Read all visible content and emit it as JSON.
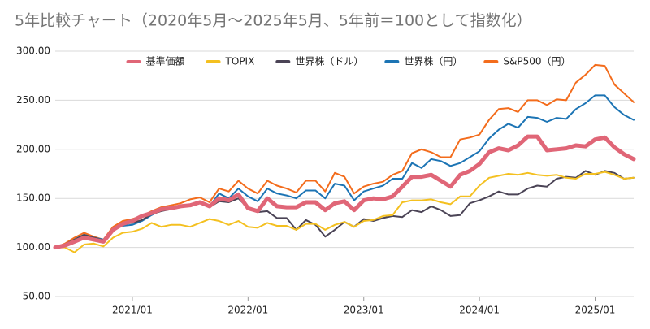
{
  "chart_data": {
    "type": "line",
    "title": "5年比較チャート（2020年5月〜2025年5月、5年前＝100として指数化）",
    "x": [
      "2020/05",
      "2020/06",
      "2020/07",
      "2020/08",
      "2020/09",
      "2020/10",
      "2020/11",
      "2020/12",
      "2021/01",
      "2021/02",
      "2021/03",
      "2021/04",
      "2021/05",
      "2021/06",
      "2021/07",
      "2021/08",
      "2021/09",
      "2021/10",
      "2021/11",
      "2021/12",
      "2022/01",
      "2022/02",
      "2022/03",
      "2022/04",
      "2022/05",
      "2022/06",
      "2022/07",
      "2022/08",
      "2022/09",
      "2022/10",
      "2022/11",
      "2022/12",
      "2023/01",
      "2023/02",
      "2023/03",
      "2023/04",
      "2023/05",
      "2023/06",
      "2023/07",
      "2023/08",
      "2023/09",
      "2023/10",
      "2023/11",
      "2023/12",
      "2024/01",
      "2024/02",
      "2024/03",
      "2024/04",
      "2024/05",
      "2024/06",
      "2024/07",
      "2024/08",
      "2024/09",
      "2024/10",
      "2024/11",
      "2024/12",
      "2025/01",
      "2025/02",
      "2025/03",
      "2025/04",
      "2025/05"
    ],
    "xticks": [
      "2021/01",
      "2022/01",
      "2023/01",
      "2024/01",
      "2025/01"
    ],
    "ylim": [
      50,
      300
    ],
    "yticks": [
      {
        "value": 50,
        "label": "50.00"
      },
      {
        "value": 100,
        "label": "100.00"
      },
      {
        "value": 150,
        "label": "150.00"
      },
      {
        "value": 200,
        "label": "200.00"
      },
      {
        "value": 250,
        "label": "250.00"
      },
      {
        "value": 300,
        "label": "300.00"
      }
    ],
    "grid": true,
    "legend": "top",
    "series": [
      {
        "name": "基準価額",
        "color": "#e06677",
        "width": 5,
        "values": [
          100,
          102,
          106,
          110,
          108,
          106,
          118,
          124,
          127,
          132,
          135,
          139,
          140,
          142,
          143,
          146,
          142,
          150,
          148,
          154,
          140,
          137,
          150,
          142,
          141,
          141,
          146,
          146,
          138,
          145,
          147,
          138,
          148,
          150,
          149,
          152,
          162,
          172,
          172,
          174,
          168,
          162,
          174,
          178,
          185,
          197,
          201,
          199,
          204,
          213,
          213,
          199,
          200,
          201,
          204,
          203,
          210,
          212,
          202,
          195,
          190
        ]
      },
      {
        "name": "TOPIX",
        "color": "#f4c020",
        "width": 2,
        "values": [
          100,
          100,
          95,
          103,
          104,
          101,
          110,
          115,
          116,
          119,
          125,
          121,
          123,
          123,
          121,
          125,
          129,
          127,
          123,
          127,
          121,
          120,
          125,
          122,
          122,
          118,
          124,
          124,
          118,
          123,
          126,
          121,
          127,
          128,
          132,
          133,
          146,
          148,
          148,
          149,
          146,
          144,
          152,
          152,
          163,
          171,
          173,
          175,
          174,
          176,
          174,
          173,
          174,
          171,
          170,
          175,
          175,
          177,
          174,
          170,
          171
        ]
      },
      {
        "name": "世界株（ドル）",
        "color": "#4b4456",
        "width": 2,
        "values": [
          100,
          103,
          108,
          113,
          110,
          107,
          119,
          124,
          125,
          128,
          134,
          137,
          139,
          141,
          143,
          145,
          141,
          147,
          146,
          150,
          140,
          136,
          137,
          130,
          130,
          118,
          128,
          123,
          111,
          118,
          126,
          121,
          129,
          127,
          130,
          132,
          131,
          138,
          136,
          142,
          138,
          132,
          133,
          145,
          148,
          152,
          157,
          154,
          154,
          160,
          163,
          162,
          170,
          172,
          171,
          178,
          174,
          178,
          176,
          170,
          171
        ]
      },
      {
        "name": "世界株（円）",
        "color": "#1c74b4",
        "width": 2,
        "values": [
          100,
          103,
          108,
          113,
          110,
          108,
          118,
          122,
          123,
          127,
          133,
          138,
          140,
          142,
          144,
          147,
          142,
          155,
          150,
          160,
          152,
          147,
          160,
          155,
          153,
          150,
          158,
          158,
          150,
          165,
          163,
          148,
          157,
          160,
          163,
          170,
          170,
          186,
          181,
          190,
          188,
          183,
          186,
          192,
          198,
          211,
          220,
          226,
          222,
          233,
          232,
          228,
          232,
          231,
          241,
          247,
          255,
          255,
          243,
          235,
          230
        ]
      },
      {
        "name": "S&P500（円）",
        "color": "#f36c1c",
        "width": 2,
        "values": [
          100,
          104,
          110,
          115,
          111,
          108,
          121,
          127,
          129,
          132,
          137,
          141,
          143,
          145,
          149,
          151,
          146,
          160,
          157,
          168,
          160,
          155,
          168,
          163,
          160,
          156,
          168,
          168,
          157,
          176,
          172,
          155,
          162,
          165,
          167,
          174,
          178,
          196,
          200,
          197,
          192,
          192,
          210,
          212,
          215,
          230,
          241,
          242,
          238,
          250,
          250,
          245,
          251,
          250,
          268,
          276,
          286,
          285,
          266,
          257,
          248
        ]
      }
    ]
  }
}
